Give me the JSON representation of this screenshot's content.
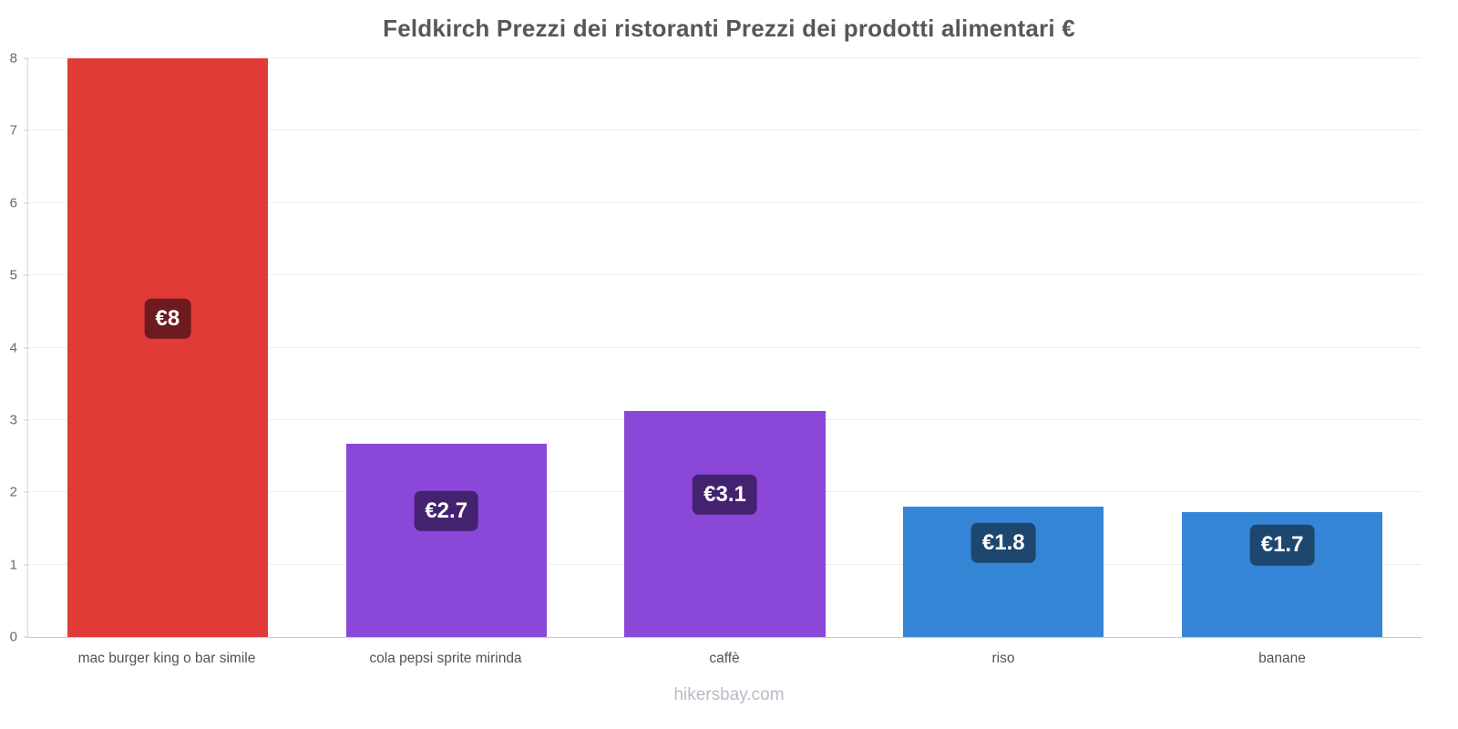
{
  "title": "Feldkirch Prezzi dei ristoranti Prezzi dei prodotti alimentari €",
  "footer": "hikersbay.com",
  "chart_data": {
    "type": "bar",
    "title": "Feldkirch Prezzi dei ristoranti Prezzi dei prodotti alimentari €",
    "categories": [
      "mac burger king o bar simile",
      "cola pepsi sprite mirinda",
      "caffè",
      "riso",
      "banane"
    ],
    "values": [
      8,
      2.67,
      3.13,
      1.8,
      1.73
    ],
    "value_labels": [
      "€8",
      "€2.7",
      "€3.1",
      "€1.8",
      "€1.7"
    ],
    "bar_colors": [
      "#e13b38",
      "#8a47d8",
      "#8a47d8",
      "#3585d6",
      "#3585d6"
    ],
    "label_colors": [
      "#6e1b20",
      "#432270",
      "#432270",
      "#1d476e",
      "#1d476e"
    ],
    "xlabel": "",
    "ylabel": "",
    "ylim": [
      0,
      8
    ],
    "yticks": [
      0,
      1,
      2,
      3,
      4,
      5,
      6,
      7,
      8
    ],
    "grid": true,
    "legend": false,
    "watermark": "hikersbay.com"
  }
}
